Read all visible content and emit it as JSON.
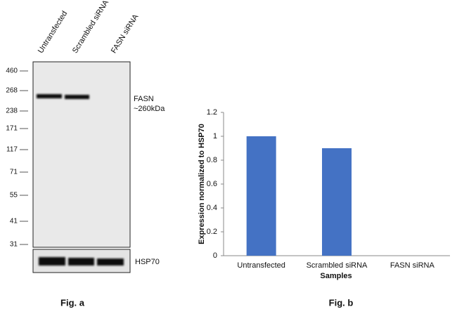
{
  "blot": {
    "lanes": [
      "Untransfected",
      "Scrambled siRNA",
      "FASN siRNA"
    ],
    "markers": [
      460,
      268,
      238,
      171,
      117,
      71,
      55,
      41,
      31
    ],
    "target_label": "FASN",
    "target_size": "~260kDa",
    "loading_label": "HSP70",
    "caption": "Fig. a"
  },
  "chart_data": {
    "type": "bar",
    "categories": [
      "Untransfected",
      "Scrambled siRNA",
      "FASN siRNA"
    ],
    "values": [
      1,
      0.9,
      0
    ],
    "color": "#4472c4",
    "xlabel": "Samples",
    "ylabel": "Expression normalized to HSP70",
    "ylim": [
      0,
      1.2
    ],
    "yticks": [
      0,
      0.2,
      0.4,
      0.6,
      0.8,
      1,
      1.2
    ],
    "caption": "Fig. b"
  }
}
